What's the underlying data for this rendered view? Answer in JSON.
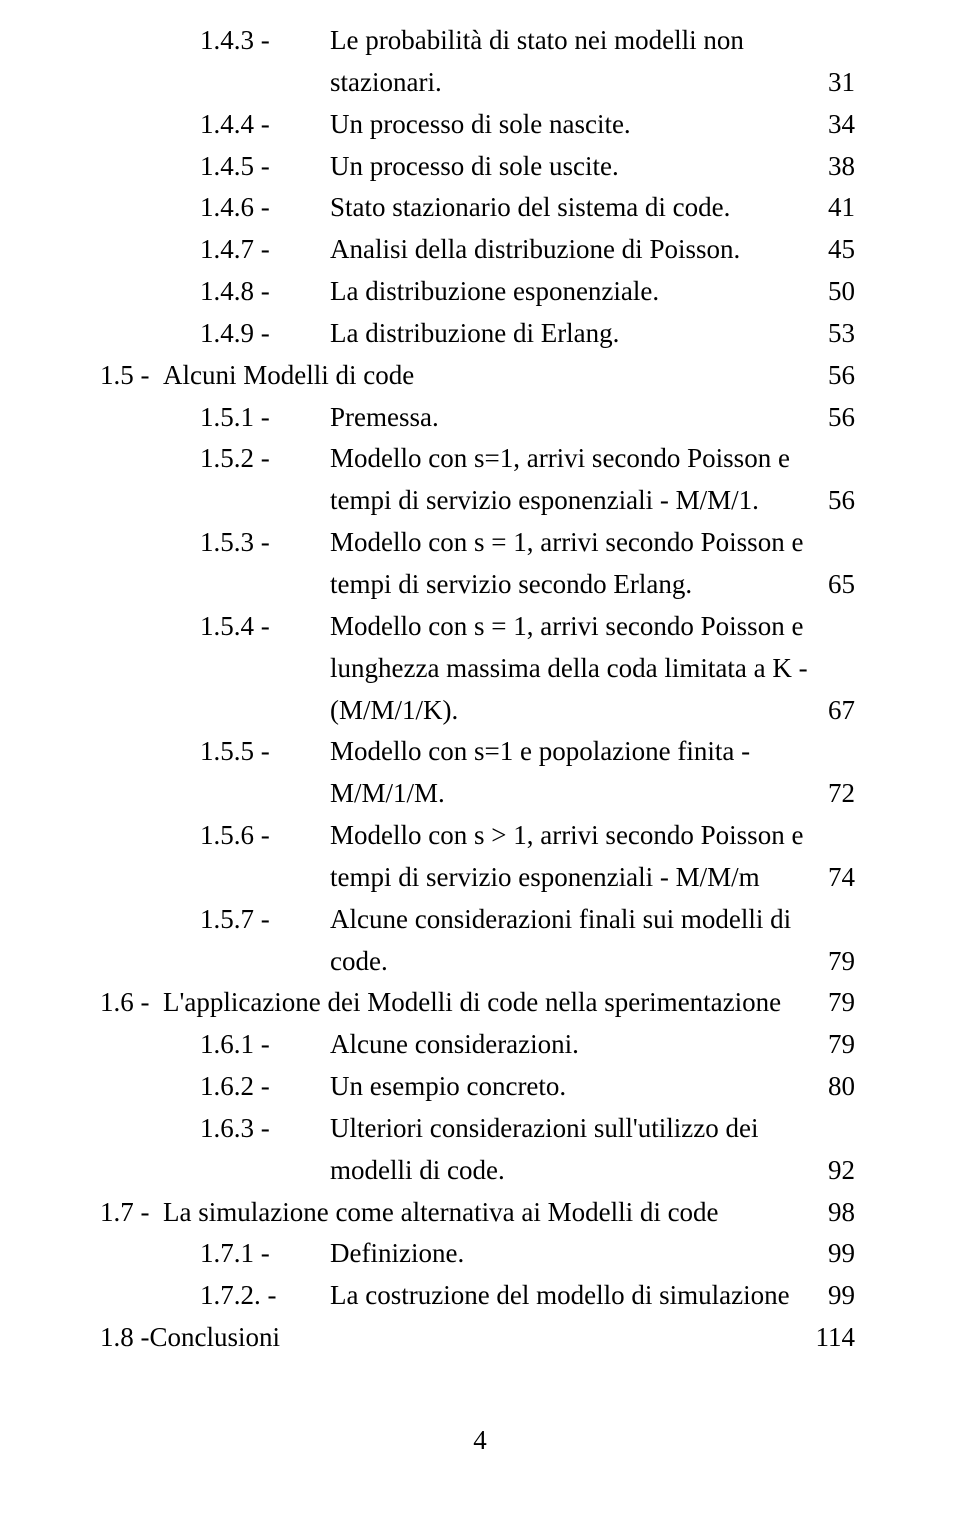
{
  "typography": {
    "font_family": "Times New Roman",
    "font_size_pt": 24,
    "text_color": "#000000",
    "background_color": "#ffffff"
  },
  "entries": [
    {
      "level": 2,
      "num": "1.4.3 -",
      "lines": [
        "Le probabilità di stato nei modelli non",
        "stazionari."
      ],
      "page": "31"
    },
    {
      "level": 2,
      "num": "1.4.4 -",
      "lines": [
        "Un processo di sole nascite."
      ],
      "page": "34"
    },
    {
      "level": 2,
      "num": "1.4.5 -",
      "lines": [
        "Un processo di sole uscite."
      ],
      "page": "38"
    },
    {
      "level": 2,
      "num": "1.4.6 -",
      "lines": [
        "Stato stazionario del sistema di code."
      ],
      "page": "41"
    },
    {
      "level": 2,
      "num": "1.4.7 -",
      "lines": [
        "Analisi della distribuzione di Poisson."
      ],
      "page": "45"
    },
    {
      "level": 2,
      "num": "1.4.8 -",
      "lines": [
        "La distribuzione esponenziale."
      ],
      "page": "50"
    },
    {
      "level": 2,
      "num": "1.4.9 -",
      "lines": [
        "La distribuzione di Erlang."
      ],
      "page": "53"
    },
    {
      "level": 1,
      "num": "1.5 -",
      "lines": [
        "Alcuni Modelli di code"
      ],
      "page": "56"
    },
    {
      "level": 2,
      "num": "1.5.1 -",
      "lines": [
        "Premessa. "
      ],
      "page": "56"
    },
    {
      "level": 2,
      "num": "1.5.2 -",
      "lines": [
        "Modello con s=1, arrivi secondo Poisson e",
        "tempi di servizio esponenziali - M/M/1."
      ],
      "page": "56"
    },
    {
      "level": 2,
      "num": "1.5.3 -",
      "lines": [
        "Modello con s = 1, arrivi secondo Poisson e",
        "tempi di servizio secondo Erlang."
      ],
      "page": "65"
    },
    {
      "level": 2,
      "num": "1.5.4 -",
      "lines": [
        "Modello con s = 1, arrivi secondo Poisson e",
        "lunghezza massima della coda limitata a K -",
        "(M/M/1/K). "
      ],
      "page": "67"
    },
    {
      "level": 2,
      "num": "1.5.5 -",
      "lines": [
        "Modello con s=1 e popolazione finita -",
        "M/M/1/M. "
      ],
      "page": "72"
    },
    {
      "level": 2,
      "num": "1.5.6 -",
      "lines": [
        "Modello con s > 1, arrivi secondo Poisson e",
        "tempi di servizio esponenziali - M/M/m"
      ],
      "page": "74"
    },
    {
      "level": 2,
      "num": "1.5.7 -",
      "lines": [
        "Alcune considerazioni finali sui modelli di",
        "code."
      ],
      "page": "79"
    },
    {
      "level": 1,
      "num": "1.6 -",
      "lines": [
        "L'applicazione dei Modelli di code nella sperimentazione"
      ],
      "page": "79"
    },
    {
      "level": 2,
      "num": "1.6.1 -",
      "lines": [
        "Alcune considerazioni."
      ],
      "page": "79"
    },
    {
      "level": 2,
      "num": "1.6.2 -",
      "lines": [
        "Un esempio concreto. "
      ],
      "page": "80"
    },
    {
      "level": 2,
      "num": "1.6.3 -",
      "lines": [
        "Ulteriori considerazioni sull'utilizzo dei",
        "modelli di code. "
      ],
      "page": "92"
    },
    {
      "level": 1,
      "num": "1.7 -",
      "lines": [
        "La simulazione come alternativa ai Modelli di code"
      ],
      "page": "98"
    },
    {
      "level": 2,
      "num": "1.7.1 -",
      "lines": [
        "Definizione."
      ],
      "page": "99"
    },
    {
      "level": 2,
      "num": "1.7.2. -",
      "lines": [
        "La costruzione del modello di simulazione"
      ],
      "page": "99"
    },
    {
      "level": 1,
      "num": "1.8 -",
      "lines": [
        "Conclusioni"
      ],
      "page": "114",
      "nospace": true
    }
  ],
  "page_number": "4"
}
